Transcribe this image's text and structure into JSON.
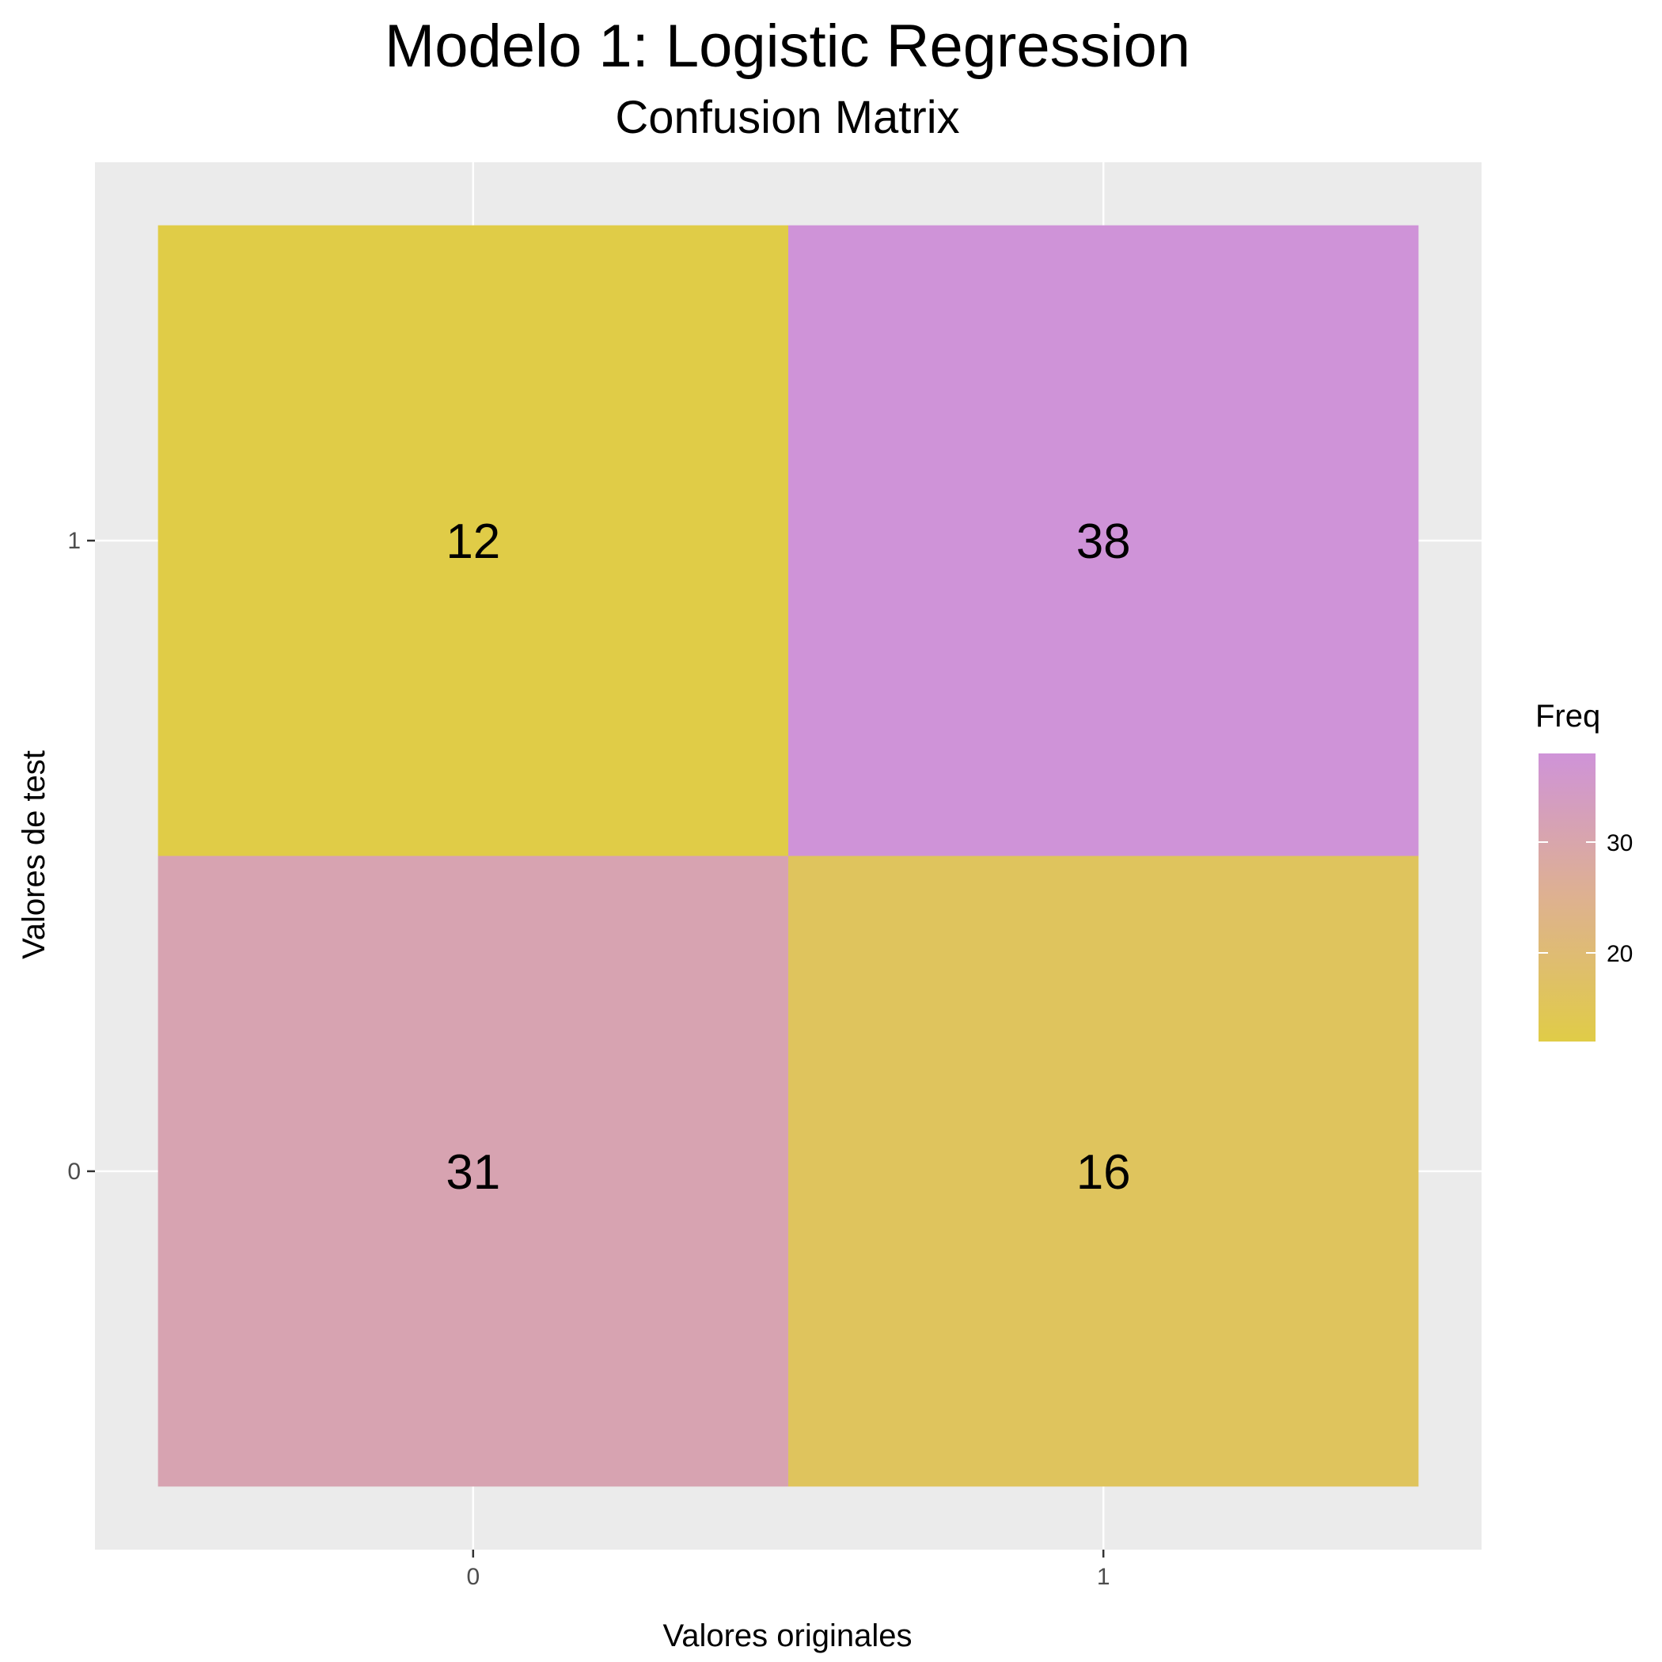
{
  "chart_data": {
    "type": "heatmap",
    "title": "Modelo 1: Logistic Regression",
    "subtitle": "Confusion Matrix",
    "xlabel": "Valores originales",
    "ylabel": "Valores de test",
    "x_categories": [
      "0",
      "1"
    ],
    "y_categories": [
      "0",
      "1"
    ],
    "cells": [
      {
        "x": "0",
        "y": "1",
        "value": 12
      },
      {
        "x": "1",
        "y": "1",
        "value": 38
      },
      {
        "x": "0",
        "y": "0",
        "value": 31
      },
      {
        "x": "1",
        "y": "0",
        "value": 16
      }
    ],
    "legend": {
      "title": "Freq",
      "position": "right",
      "ticks": [
        20,
        30
      ],
      "range": [
        12,
        38
      ],
      "low_color": "#e0cc47",
      "high_color": "#cf93d8"
    },
    "grid": true,
    "panel_background": "#ebebeb"
  }
}
